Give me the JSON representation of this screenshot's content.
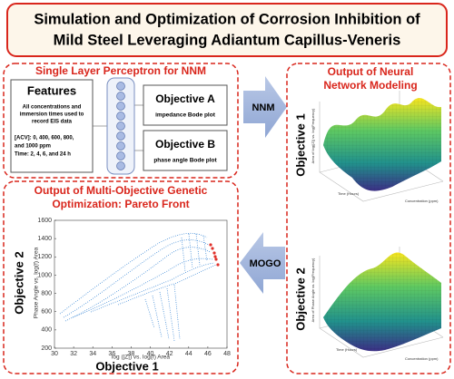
{
  "title": [
    "Simulation and Optimization of Corrosion Inhibition of",
    "Mild Steel Leveraging Adiantum Capillus-Veneris"
  ],
  "perceptron": {
    "heading": "Single Layer Perceptron for NNM",
    "features": {
      "title": "Features",
      "lines": [
        "All concentrations and",
        "immersion times used to",
        "record EIS data",
        "[ACV]:  0,  400,  600,  800,",
        "and 1000 ppm",
        "Time: 2, 4, 6, and 24 h"
      ]
    },
    "objective_a": {
      "title": "Objective A",
      "subtitle": "impedance Bode plot"
    },
    "objective_b": {
      "title": "Objective B",
      "subtitle": "phase angle Bode plot"
    }
  },
  "arrows": {
    "nnm": "NNM",
    "mogo": "MOGO"
  },
  "nnm_output": {
    "heading": [
      "Output of Neural",
      "Network Modeling"
    ],
    "objective_1": "Objective 1",
    "objective_2": "Objective 2",
    "surface_1": {
      "zlabel": "Area of log(|Z|) vs. log(Frequency)",
      "xlabel": "Time (Hours)",
      "ylabel": "Concentration (ppm)"
    },
    "surface_2": {
      "zlabel": "Area of Phase Angle vs. log(Frequency)",
      "xlabel": "Time (Hours)",
      "ylabel": "Concentration (ppm)"
    }
  },
  "pareto": {
    "heading": [
      "Output of Multi-Objective Genetic",
      "Optimization: Pareto Front"
    ],
    "objective_1": "Objective 1",
    "objective_2": "Objective 2",
    "xlabel": "log (|Z|) vs. log(f) Area",
    "ylabel": "Phase Angle vs. log(f) Area",
    "xlim": [
      30,
      48
    ],
    "xticks": [
      30,
      32,
      34,
      36,
      38,
      40,
      42,
      44,
      46,
      48
    ],
    "ylim": [
      200,
      1600
    ],
    "yticks": [
      200,
      400,
      600,
      800,
      1000,
      1200,
      1400,
      1600
    ]
  }
}
